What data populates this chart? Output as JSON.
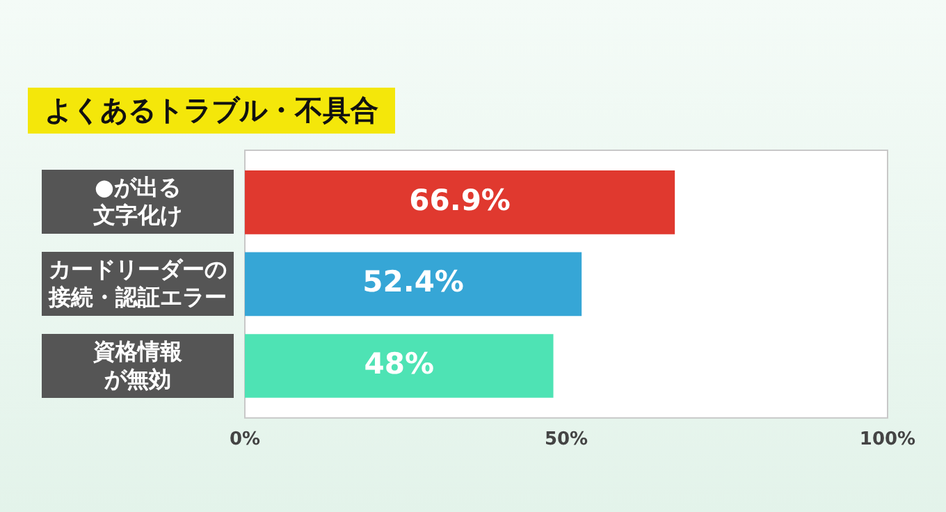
{
  "chart_data": {
    "type": "bar",
    "orientation": "horizontal",
    "title": "よくあるトラブル・不具合",
    "categories": [
      "●が出る文字化け",
      "カードリーダーの接続・認証エラー",
      "資格情報が無効"
    ],
    "values": [
      66.9,
      52.4,
      48
    ],
    "colors": [
      "#e0392f",
      "#36a6d6",
      "#4ee3b4"
    ],
    "value_labels": [
      "66.9%",
      "52.4%",
      "48%"
    ],
    "xlim": [
      0,
      100
    ],
    "xticks": [
      {
        "value": 0,
        "label": "0%"
      },
      {
        "value": 50,
        "label": "50%"
      },
      {
        "value": 100,
        "label": "100%"
      }
    ],
    "grid": false,
    "legend": false
  }
}
